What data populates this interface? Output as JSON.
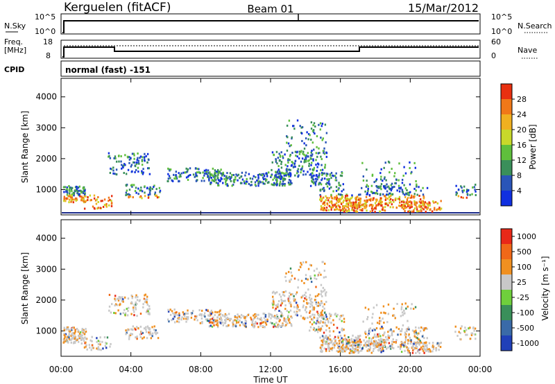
{
  "header": {
    "station": "Kerguelen (fitACF)",
    "beam": "Beam 01",
    "date": "15/Mar/2012"
  },
  "noise_panel": {
    "left_label": "N.Sky",
    "right_label": "N.Search",
    "left_ticks": [
      "10^5",
      "10^0"
    ],
    "right_ticks": [
      "10^5",
      "10^0"
    ]
  },
  "freq_panel": {
    "left_label_1": "Freq.",
    "left_label_2": "[MHz]",
    "right_label": "Nave",
    "left_ticks": [
      "18",
      "8"
    ],
    "right_ticks": [
      "60",
      "0"
    ]
  },
  "cpid": {
    "label": "CPID",
    "value": "normal (fast) -151"
  },
  "chart_data": [
    {
      "type": "heatmap",
      "title": "",
      "ylabel": "Slant Range [km]",
      "ylim": [
        180,
        4600
      ],
      "y_ticks": [
        "1000",
        "2000",
        "3000",
        "4000"
      ],
      "colorbar_label": "Power [dB]",
      "colorbar_ticks": [
        "4",
        "8",
        "12",
        "16",
        "20",
        "24",
        "28"
      ],
      "colorbar_colors": [
        "#1030e0",
        "#2a55b8",
        "#3a8f5a",
        "#5fbf3c",
        "#c8d82a",
        "#f0b020",
        "#f07818",
        "#e83010"
      ]
    },
    {
      "type": "heatmap",
      "title": "",
      "ylabel": "Slant Range [km]",
      "ylim": [
        180,
        4600
      ],
      "y_ticks": [
        "1000",
        "2000",
        "3000",
        "4000"
      ],
      "colorbar_label": "Velocity [m s⁻¹]",
      "colorbar_ticks": [
        "1000",
        "500",
        "100",
        "25",
        "-25",
        "-100",
        "-500",
        "-1000"
      ],
      "colorbar_colors": [
        "#2040b8",
        "#3a6aa8",
        "#3a8f5a",
        "#6fcf3c",
        "#c8c8c8",
        "#f09020",
        "#f06818",
        "#e82818"
      ]
    }
  ],
  "x_axis": {
    "label": "Time UT",
    "ticks": [
      "00:00",
      "04:00",
      "08:00",
      "12:00",
      "16:00",
      "20:00",
      "00:00"
    ]
  }
}
